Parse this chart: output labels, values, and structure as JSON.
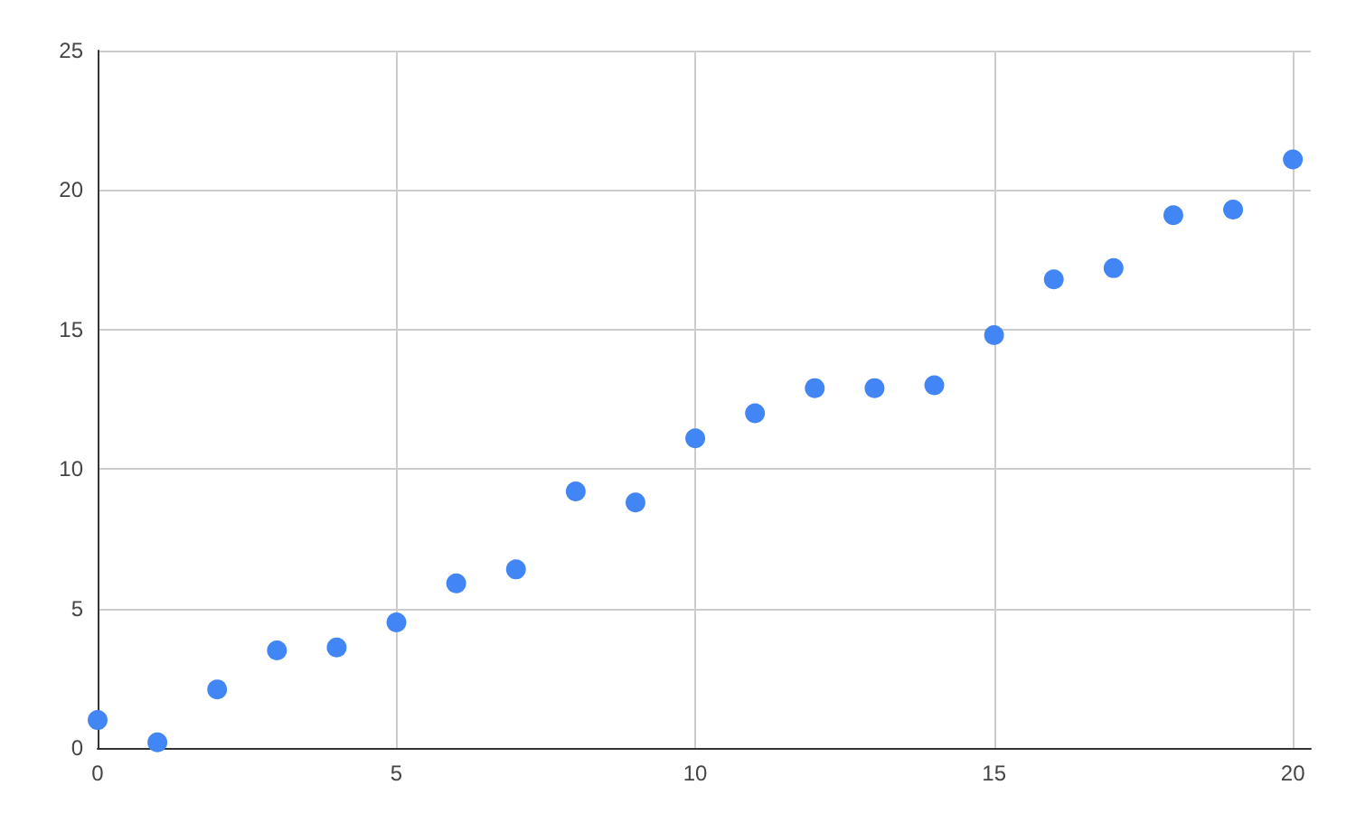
{
  "chart_data": {
    "type": "scatter",
    "x": [
      0,
      1,
      2,
      3,
      4,
      5,
      6,
      7,
      8,
      9,
      10,
      11,
      12,
      13,
      14,
      15,
      16,
      17,
      18,
      19,
      20
    ],
    "series": [
      {
        "color": "#4285f4",
        "values": [
          1.0,
          0.2,
          2.1,
          3.5,
          3.6,
          4.5,
          5.9,
          6.4,
          9.2,
          8.8,
          11.1,
          12.0,
          12.9,
          12.9,
          13.0,
          14.8,
          16.8,
          17.2,
          19.1,
          19.3,
          21.1
        ]
      }
    ],
    "xlim": [
      0,
      20.3
    ],
    "xticks": [
      0,
      5,
      10,
      15,
      20
    ],
    "ylim": [
      0,
      25
    ],
    "yticks": [
      0,
      5,
      10,
      15,
      20,
      25
    ],
    "grid": true,
    "marker": "circle"
  }
}
